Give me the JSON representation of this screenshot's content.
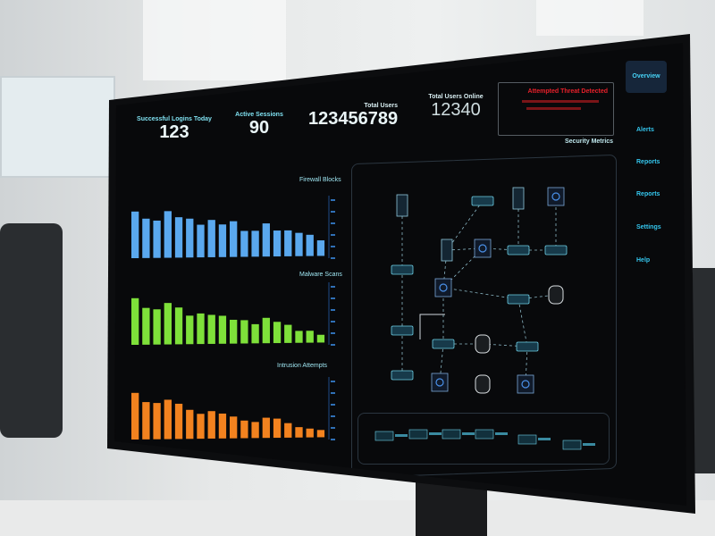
{
  "dashboard": {
    "kpis": [
      {
        "label": "Successful Logins Today",
        "value": "123"
      },
      {
        "label": "Active Sessions",
        "value": "90"
      },
      {
        "label": "Total Users",
        "value": "123456789"
      },
      {
        "label": "Total Users Online",
        "value": "12340"
      }
    ],
    "alert": {
      "title": "Attempted Threat Detected",
      "color": "#e8202a"
    },
    "section_title": "Security Metrics",
    "nav": [
      "Overview",
      "Alerts",
      "Reports",
      "Reports",
      "Settings",
      "Help"
    ],
    "active_nav": "Overview"
  },
  "chart_data": [
    {
      "type": "bar",
      "title": "Firewall Blocks",
      "color": "#5aa8ee",
      "values": [
        90,
        76,
        72,
        90,
        78,
        75,
        63,
        72,
        63,
        69,
        50,
        50,
        64,
        50,
        50,
        45,
        41,
        30
      ]
    },
    {
      "type": "bar",
      "title": "Malware Scans",
      "color": "#7ee03a",
      "values": [
        90,
        71,
        68,
        80,
        71,
        55,
        59,
        56,
        54,
        46,
        45,
        37,
        49,
        41,
        35,
        23,
        23,
        15
      ]
    },
    {
      "type": "bar",
      "title": "Intrusion Attempts",
      "color": "#f2821f",
      "values": [
        90,
        72,
        70,
        76,
        68,
        56,
        48,
        53,
        48,
        42,
        34,
        31,
        39,
        37,
        28,
        20,
        17,
        14
      ]
    }
  ]
}
